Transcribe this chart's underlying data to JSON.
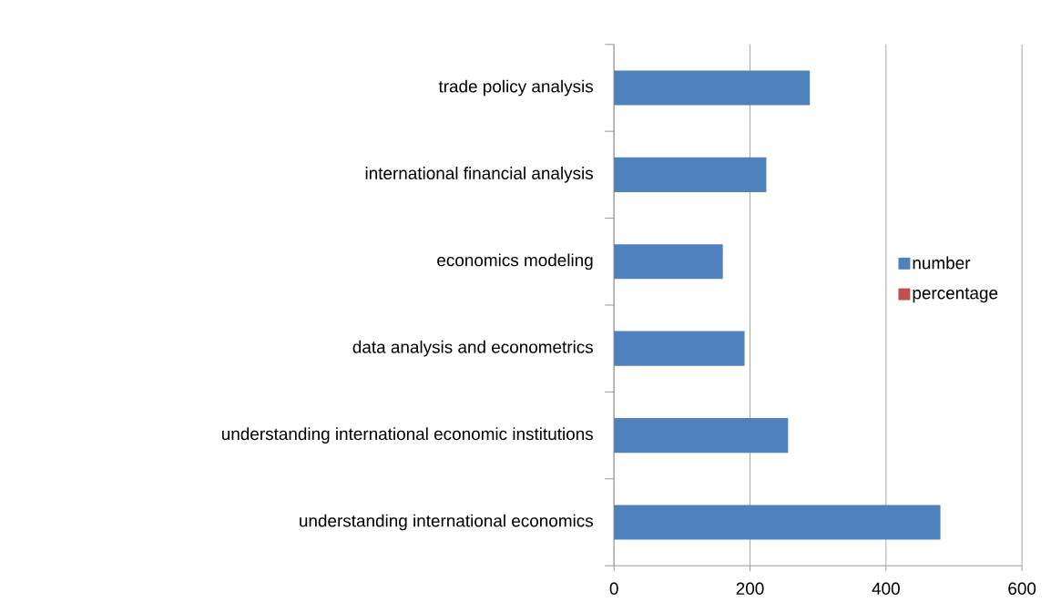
{
  "chart_data": {
    "type": "bar",
    "orientation": "horizontal",
    "categories": [
      "trade policy analysis",
      "international financial analysis",
      "economics modeling",
      "data analysis and econometrics",
      "understanding international economic institutions",
      "understanding international economics"
    ],
    "series": [
      {
        "name": "number",
        "color": "#4f81bd",
        "values": [
          288,
          224,
          160,
          192,
          256,
          480
        ]
      },
      {
        "name": "percentage",
        "color": "#c0504d",
        "values": [
          null,
          null,
          null,
          null,
          null,
          null
        ]
      }
    ],
    "xlim": [
      0,
      600
    ],
    "xticks": [
      0,
      200,
      400,
      600
    ],
    "grid": "x",
    "legend": "right"
  }
}
